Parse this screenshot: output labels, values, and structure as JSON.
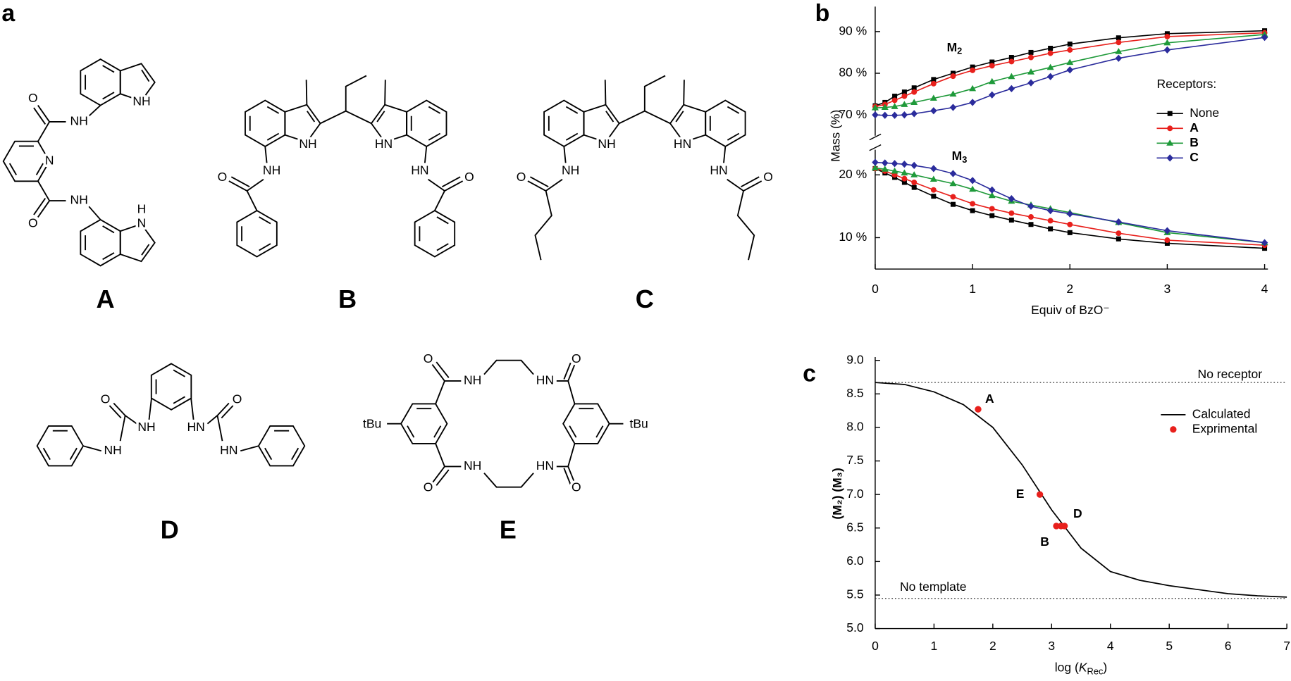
{
  "panel_labels": [
    "a",
    "b",
    "c"
  ],
  "structures": [
    {
      "label": "A",
      "atoms": [
        "O",
        "NH",
        "NH",
        "N",
        "NH",
        "H",
        "N",
        "O"
      ]
    },
    {
      "label": "B",
      "atoms": [
        "NH",
        "HN",
        "NH",
        "O",
        "HN",
        "O"
      ]
    },
    {
      "label": "C",
      "atoms": [
        "NH",
        "HN",
        "NH",
        "O",
        "HN",
        "O"
      ]
    },
    {
      "label": "D",
      "atoms": [
        "NH",
        "HN",
        "O",
        "O",
        "NH",
        "HN"
      ]
    },
    {
      "label": "E",
      "atoms": [
        "O",
        "NH",
        "HN",
        "O",
        "tBu",
        "tBu",
        "O",
        "NH",
        "HN",
        "O"
      ]
    }
  ],
  "chart_data": [
    {
      "type": "line",
      "x": [
        0,
        0.1,
        0.2,
        0.3,
        0.4,
        0.6,
        0.8,
        1,
        1.2,
        1.4,
        1.6,
        1.8,
        2,
        2.5,
        3,
        4
      ],
      "xlim": [
        0,
        4
      ],
      "xticks": [
        0,
        1,
        2,
        3,
        4
      ],
      "xlabel": "Equiv of BzO⁻",
      "ylabel": "Mass (%)",
      "y_segments": [
        {
          "ylim": [
            65,
            96
          ],
          "yticks": [
            {
              "value": 70,
              "label": "70 %"
            },
            {
              "value": 80,
              "label": "80 %"
            },
            {
              "value": 90,
              "label": "90 %"
            }
          ]
        },
        {
          "ylim": [
            5,
            24
          ],
          "yticks": [
            {
              "value": 10,
              "label": "10 %"
            },
            {
              "value": 20,
              "label": "20 %"
            }
          ]
        }
      ],
      "annotations": [
        {
          "text": "M",
          "subscript": "2"
        },
        {
          "text": "M",
          "subscript": "3"
        }
      ],
      "legend_title": "Receptors:",
      "legend": "right",
      "series": [
        {
          "name": "None",
          "color": "#000000",
          "marker": "square",
          "values": [
            72.2,
            73,
            74.5,
            75.5,
            76.5,
            78.5,
            80,
            81.5,
            82.7,
            83.8,
            85,
            86,
            87,
            88.5,
            89.5,
            90.2
          ],
          "lower_values": [
            21,
            20.3,
            19.6,
            18.8,
            18,
            16.6,
            15.3,
            14.3,
            13.5,
            12.8,
            12.1,
            11.4,
            10.8,
            9.8,
            9.1,
            8.3
          ]
        },
        {
          "name": "A",
          "color": "#e8201c",
          "marker": "circle",
          "values": [
            72,
            72.5,
            73.5,
            74.5,
            75.5,
            77.5,
            79.3,
            80.7,
            81.8,
            82.8,
            83.8,
            84.8,
            85.6,
            87.4,
            88.8,
            89.7
          ],
          "lower_values": [
            21,
            20.6,
            20,
            19.4,
            18.8,
            17.6,
            16.5,
            15.4,
            14.6,
            13.9,
            13.3,
            12.7,
            12.1,
            10.7,
            9.6,
            8.8
          ]
        },
        {
          "name": "B",
          "color": "#1f9a3a",
          "marker": "triangle",
          "values": [
            71.7,
            71.8,
            72,
            72.5,
            73,
            74,
            75,
            76.3,
            78,
            79.2,
            80.3,
            81.4,
            82.6,
            85.2,
            87.3,
            89.3
          ],
          "lower_values": [
            21.1,
            20.9,
            20.6,
            20.3,
            20,
            19.3,
            18.6,
            17.7,
            16.7,
            15.8,
            15.2,
            14.6,
            14,
            12.4,
            10.8,
            9.2
          ]
        },
        {
          "name": "C",
          "color": "#2b2c9c",
          "marker": "diamond",
          "values": [
            70,
            69.9,
            69.9,
            70,
            70.3,
            71,
            71.8,
            73,
            74.8,
            76.3,
            77.7,
            79.2,
            80.8,
            83.6,
            85.6,
            88.6
          ],
          "lower_values": [
            22,
            21.9,
            21.8,
            21.7,
            21.5,
            21,
            20.2,
            19.1,
            17.6,
            16.2,
            15,
            14.3,
            13.8,
            12.5,
            11.1,
            9.2
          ]
        }
      ]
    },
    {
      "type": "line",
      "xlim": [
        0,
        7
      ],
      "xticks": [
        0,
        1,
        2,
        3,
        4,
        5,
        6,
        7
      ],
      "ylim": [
        5,
        9
      ],
      "yticks": [
        {
          "value": 5,
          "label": "5.0"
        },
        {
          "value": 5.5,
          "label": "5.5"
        },
        {
          "value": 6,
          "label": "6.0"
        },
        {
          "value": 6.5,
          "label": "6.5"
        },
        {
          "value": 7,
          "label": "7.0"
        },
        {
          "value": 7.5,
          "label": "7.5"
        },
        {
          "value": 8,
          "label": "8.0"
        },
        {
          "value": 8.5,
          "label": "8.5"
        },
        {
          "value": 9,
          "label": "9.0"
        }
      ],
      "xlabel": {
        "prefix": "log (",
        "symbol": "K",
        "subscript": "Rec",
        "suffix": ")"
      },
      "ylabel": "(M₂) (M₃)",
      "legend": "upper right",
      "series": [
        {
          "name": "Calculated",
          "color": "#000000",
          "x": [
            0,
            0.5,
            1,
            1.5,
            2,
            2.5,
            3,
            3.5,
            4,
            4.5,
            5,
            5.5,
            6,
            6.5,
            7
          ],
          "values": [
            8.67,
            8.64,
            8.53,
            8.34,
            8.0,
            7.44,
            6.77,
            6.2,
            5.85,
            5.72,
            5.64,
            5.58,
            5.52,
            5.49,
            5.47
          ]
        }
      ],
      "points": {
        "name": "Exprimental",
        "color": "#e8201c",
        "x": [
          1.75,
          2.8,
          3.08,
          3.16,
          3.22
        ],
        "values": [
          8.27,
          7.0,
          6.53,
          6.53,
          6.53
        ],
        "labels": [
          "A",
          "E",
          "B",
          null,
          "D"
        ]
      },
      "reference_lines": [
        {
          "value": 8.67,
          "label": "No receptor"
        },
        {
          "value": 5.45,
          "label": "No template"
        }
      ]
    }
  ]
}
